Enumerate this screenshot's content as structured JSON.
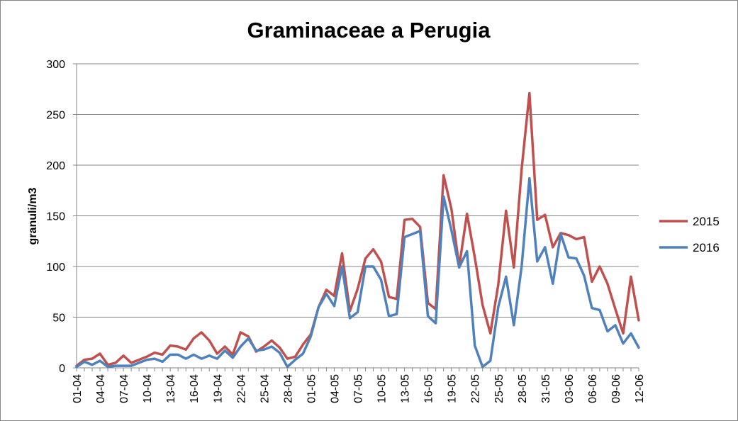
{
  "chart_data": {
    "type": "line",
    "title": "Graminaceae a Perugia",
    "ylabel": "granuli/m3",
    "xlabel": "",
    "ylim": [
      0,
      300
    ],
    "yticks": [
      0,
      50,
      100,
      150,
      200,
      250,
      300
    ],
    "grid": "horizontal",
    "legend_position": "right",
    "categories": [
      "01-04",
      "02-04",
      "03-04",
      "04-04",
      "05-04",
      "06-04",
      "07-04",
      "08-04",
      "09-04",
      "10-04",
      "11-04",
      "12-04",
      "13-04",
      "14-04",
      "15-04",
      "16-04",
      "17-04",
      "18-04",
      "19-04",
      "20-04",
      "21-04",
      "22-04",
      "23-04",
      "24-04",
      "25-04",
      "26-04",
      "27-04",
      "28-04",
      "29-04",
      "30-04",
      "01-05",
      "02-05",
      "03-05",
      "04-05",
      "05-05",
      "06-05",
      "07-05",
      "08-05",
      "09-05",
      "10-05",
      "11-05",
      "12-05",
      "13-05",
      "14-05",
      "15-05",
      "16-05",
      "17-05",
      "18-05",
      "19-05",
      "20-05",
      "21-05",
      "22-05",
      "23-05",
      "24-05",
      "25-05",
      "26-05",
      "27-05",
      "28-05",
      "29-05",
      "30-05",
      "31-05",
      "01-06",
      "02-06",
      "03-06",
      "04-06",
      "05-06",
      "06-06",
      "07-06",
      "08-06",
      "09-06",
      "10-06",
      "11-06",
      "12-06"
    ],
    "tick_labels": [
      "01-04",
      "04-04",
      "07-04",
      "10-04",
      "13-04",
      "16-04",
      "19-04",
      "22-04",
      "25-04",
      "28-04",
      "01-05",
      "04-05",
      "07-05",
      "10-05",
      "13-05",
      "16-05",
      "19-05",
      "22-05",
      "25-05",
      "28-05",
      "31-05",
      "03-06",
      "06-06",
      "09-06",
      "12-06"
    ],
    "series": [
      {
        "name": "2015",
        "color": "#c0504d",
        "values": [
          2,
          8,
          9,
          14,
          3,
          5,
          12,
          5,
          8,
          11,
          15,
          13,
          22,
          21,
          18,
          29,
          35,
          27,
          14,
          21,
          13,
          35,
          31,
          16,
          21,
          27,
          20,
          9,
          11,
          23,
          33,
          60,
          77,
          71,
          113,
          56,
          78,
          108,
          117,
          105,
          70,
          68,
          146,
          147,
          139,
          64,
          58,
          190,
          157,
          100,
          152,
          109,
          62,
          34,
          82,
          155,
          99,
          196,
          271,
          146,
          151,
          119,
          133,
          131,
          127,
          129,
          85,
          100,
          83,
          58,
          34,
          90,
          47
        ]
      },
      {
        "name": "2016",
        "color": "#4f81bd",
        "values": [
          1,
          6,
          3,
          7,
          1,
          2,
          2,
          2,
          5,
          8,
          9,
          6,
          13,
          13,
          9,
          13,
          9,
          12,
          9,
          17,
          10,
          21,
          29,
          17,
          18,
          21,
          15,
          1,
          8,
          14,
          31,
          60,
          73,
          61,
          100,
          49,
          55,
          100,
          100,
          87,
          51,
          53,
          129,
          132,
          135,
          51,
          44,
          169,
          136,
          99,
          115,
          22,
          1,
          7,
          60,
          90,
          42,
          100,
          187,
          105,
          119,
          83,
          132,
          109,
          108,
          91,
          59,
          57,
          36,
          42,
          24,
          34,
          20
        ]
      }
    ]
  }
}
